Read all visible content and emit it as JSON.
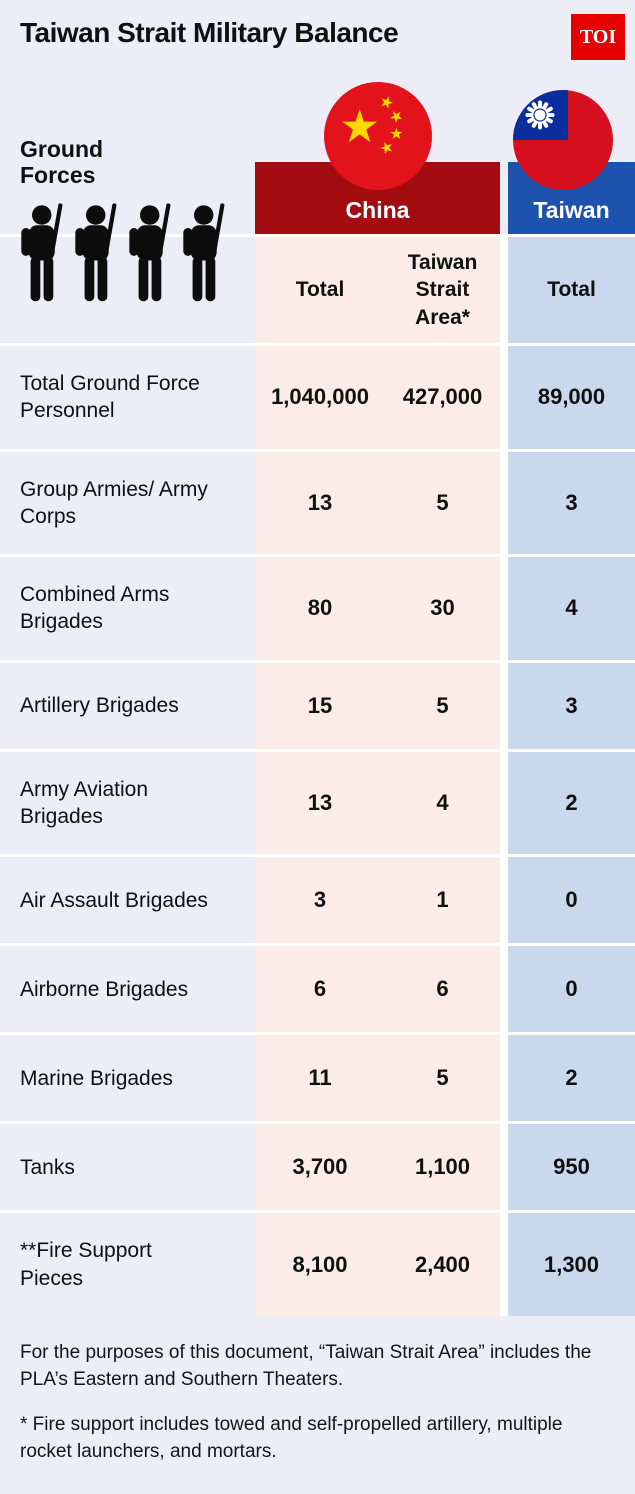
{
  "header": {
    "title": "Taiwan Strait Military Balance",
    "logo_text": "TOI"
  },
  "chart_data": {
    "type": "table",
    "title": "Taiwan Strait Military Balance",
    "section": "Ground Forces",
    "column_groups": [
      {
        "label": "China",
        "columns": [
          "Total",
          "Taiwan Strait Area*"
        ]
      },
      {
        "label": "Taiwan",
        "columns": [
          "Total"
        ]
      }
    ],
    "rows": [
      {
        "label": "Total Ground Force Personnel",
        "values": [
          "1,040,000",
          "427,000",
          "89,000"
        ]
      },
      {
        "label": "Group Armies/ Army Corps",
        "values": [
          "13",
          "5",
          "3"
        ]
      },
      {
        "label": "Combined Arms Brigades",
        "values": [
          "80",
          "30",
          "4"
        ]
      },
      {
        "label": "Artillery Brigades",
        "values": [
          "15",
          "5",
          "3"
        ]
      },
      {
        "label": "Army Aviation Brigades",
        "values": [
          "13",
          "4",
          "2"
        ]
      },
      {
        "label": "Air Assault Brigades",
        "values": [
          "3",
          "1",
          "0"
        ]
      },
      {
        "label": "Airborne Brigades",
        "values": [
          "6",
          "6",
          "0"
        ]
      },
      {
        "label": "Marine Brigades",
        "values": [
          "11",
          "5",
          "2"
        ]
      },
      {
        "label": "Tanks",
        "values": [
          "3,700",
          "1,100",
          "950"
        ]
      },
      {
        "label": "**Fire Support Pieces",
        "values": [
          "8,100",
          "2,400",
          "1,300"
        ]
      }
    ],
    "footnotes": [
      "For the purposes of this document, “Taiwan Strait Area” includes the PLA’s Eastern and Southern Theaters.",
      "* Fire support includes towed and self-propelled artillery, multiple rocket launchers, and mortars."
    ]
  },
  "icons": {
    "soldier": "soldier-icon",
    "china_flag": "china-flag-icon",
    "taiwan_flag": "taiwan-flag-icon"
  },
  "colors": {
    "page_bg": "#ecedf6",
    "china_header": "#a30d12",
    "taiwan_header": "#1d52ae",
    "china_cell_bg": "#fbece7",
    "taiwan_cell_bg": "#c9d8ec",
    "toi_logo_bg": "#e60000",
    "text": "#101010"
  }
}
